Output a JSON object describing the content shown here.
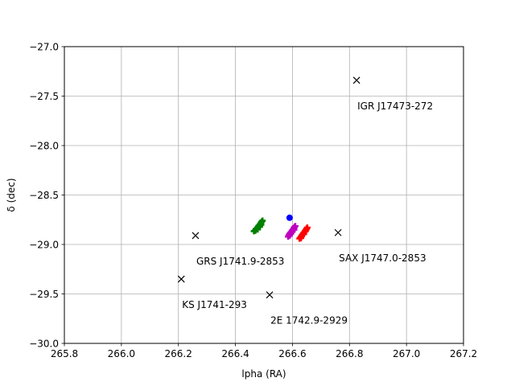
{
  "chart_data": {
    "type": "scatter",
    "xlabel": "lpha (RA)",
    "ylabel": "δ  (dec)",
    "xlim": [
      265.8,
      267.2
    ],
    "ylim": [
      -30.0,
      -27.0
    ],
    "xticks": [
      "265.8",
      "266.0",
      "266.2",
      "266.4",
      "266.6",
      "266.8",
      "267.0",
      "267.2"
    ],
    "yticks": [
      "−27.0",
      "−27.5",
      "−28.0",
      "−28.5",
      "−29.0",
      "−29.5",
      "−30.0"
    ],
    "xtick_values": [
      265.8,
      266.0,
      266.2,
      266.4,
      266.6,
      266.8,
      267.0,
      267.2
    ],
    "ytick_values": [
      -27.0,
      -27.5,
      -28.0,
      -28.5,
      -29.0,
      -29.5,
      -30.0
    ],
    "grid": true,
    "sources": [
      {
        "name": "IGR J17473-272",
        "x": 266.825,
        "y": -27.34
      },
      {
        "name": "GRS J1741.9-2853",
        "x": 266.26,
        "y": -28.91
      },
      {
        "name": "SAX J1747.0-2853",
        "x": 266.76,
        "y": -28.88
      },
      {
        "name": "KS J1741-293",
        "x": 266.21,
        "y": -29.35
      },
      {
        "name": "2E 1742.9-2929",
        "x": 266.52,
        "y": -29.51
      }
    ],
    "point": {
      "x": 266.59,
      "y": -28.73,
      "color": "#0000ff"
    },
    "series": [
      {
        "color": "#008000",
        "points": [
          [
            266.465,
            -28.865
          ],
          [
            266.47,
            -28.855
          ],
          [
            266.472,
            -28.845
          ],
          [
            266.475,
            -28.84
          ],
          [
            266.478,
            -28.83
          ],
          [
            266.48,
            -28.82
          ],
          [
            266.482,
            -28.81
          ],
          [
            266.485,
            -28.8
          ],
          [
            266.488,
            -28.79
          ],
          [
            266.49,
            -28.78
          ],
          [
            266.492,
            -28.77
          ],
          [
            266.495,
            -28.76
          ],
          [
            266.47,
            -28.86
          ],
          [
            266.478,
            -28.848
          ],
          [
            266.486,
            -28.82
          ],
          [
            266.49,
            -28.8
          ]
        ]
      },
      {
        "color": "#bf00bf",
        "points": [
          [
            266.585,
            -28.92
          ],
          [
            266.588,
            -28.905
          ],
          [
            266.59,
            -28.895
          ],
          [
            266.592,
            -28.885
          ],
          [
            266.595,
            -28.875
          ],
          [
            266.598,
            -28.865
          ],
          [
            266.6,
            -28.855
          ],
          [
            266.603,
            -28.845
          ],
          [
            266.605,
            -28.835
          ],
          [
            266.607,
            -28.825
          ],
          [
            266.61,
            -28.815
          ],
          [
            266.59,
            -28.91
          ],
          [
            266.6,
            -28.87
          ],
          [
            266.606,
            -28.85
          ],
          [
            266.595,
            -28.89
          ]
        ]
      },
      {
        "color": "#ff0000",
        "points": [
          [
            266.625,
            -28.94
          ],
          [
            266.628,
            -28.93
          ],
          [
            266.63,
            -28.92
          ],
          [
            266.633,
            -28.91
          ],
          [
            266.635,
            -28.9
          ],
          [
            266.638,
            -28.89
          ],
          [
            266.64,
            -28.88
          ],
          [
            266.643,
            -28.87
          ],
          [
            266.645,
            -28.86
          ],
          [
            266.648,
            -28.85
          ],
          [
            266.65,
            -28.84
          ],
          [
            266.652,
            -28.83
          ],
          [
            266.63,
            -28.935
          ],
          [
            266.64,
            -28.895
          ],
          [
            266.646,
            -28.865
          ]
        ]
      }
    ]
  }
}
